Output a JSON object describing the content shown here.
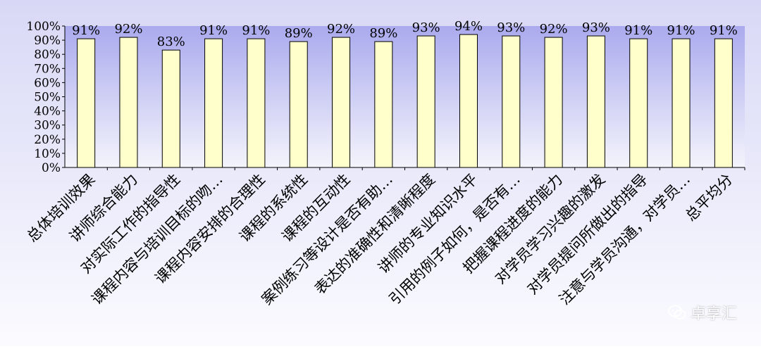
{
  "colors": {
    "plot_top": "#aaaaee",
    "plot_bottom": "#f4f4fc",
    "outer_top": "#d8d8f6",
    "outer_bottom": "#fbfbff",
    "bar_fill": "#ffffcc",
    "bar_stroke": "#000000",
    "axis": "#000000"
  },
  "watermark": {
    "text": "卓享汇",
    "icon": "wechat-icon"
  },
  "chart_data": {
    "type": "bar",
    "title": "",
    "xlabel": "",
    "ylabel": "",
    "ylim": [
      0,
      100
    ],
    "yticks": [
      "0%",
      "10%",
      "20%",
      "30%",
      "40%",
      "50%",
      "60%",
      "70%",
      "80%",
      "90%",
      "100%"
    ],
    "grid": false,
    "categories": [
      "总体培训效果",
      "讲师综合能力",
      "对实际工作的指导性",
      "课程内容与培训目标的吻…",
      "课程内容安排的合理性",
      "课程的系统性",
      "课程的互动性",
      "案例练习等设计是否有助…",
      "表达的准确性和清晰程度",
      "讲师的专业知识水平",
      "引用的例子如何，是否有…",
      "把握课程进度的能力",
      "对学员学习兴趣的激发",
      "对学员提问所做出的指导",
      "注意与学员沟通，对学员…",
      "总平均分"
    ],
    "values": [
      91,
      92,
      83,
      91,
      91,
      89,
      92,
      89,
      93,
      94,
      93,
      92,
      93,
      91,
      91,
      91
    ],
    "data_labels": [
      "91%",
      "92%",
      "83%",
      "91%",
      "91%",
      "89%",
      "92%",
      "89%",
      "93%",
      "94%",
      "93%",
      "92%",
      "93%",
      "91%",
      "91%",
      "91%"
    ]
  }
}
